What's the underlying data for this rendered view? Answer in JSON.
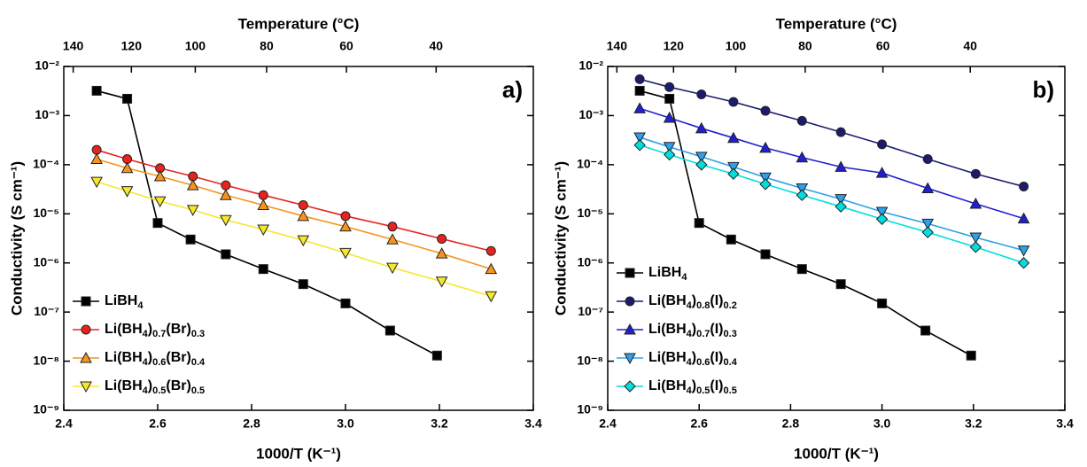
{
  "chart_data": [
    {
      "type": "line",
      "panel_label": "a)",
      "x_label": "1000/T (K⁻¹)",
      "y_label": "Conductivity (S cm⁻¹)",
      "x2_label": "Temperature (°C)",
      "xlim": [
        2.4,
        3.4
      ],
      "xticks": [
        2.4,
        2.6,
        2.8,
        {
          "value": 3,
          "label": "3.0"
        },
        3.2,
        3.4
      ],
      "x2ticks": [
        {
          "value": 2.42,
          "label": "140"
        },
        {
          "value": 2.544,
          "label": "120"
        },
        {
          "value": 2.68,
          "label": "100"
        },
        {
          "value": 2.832,
          "label": "80"
        },
        {
          "value": 3.002,
          "label": "60"
        },
        {
          "value": 3.193,
          "label": "40"
        }
      ],
      "ylim": [
        1e-09,
        0.01
      ],
      "yscale": "log",
      "yticks": [
        {
          "value": 1e-09,
          "label": "10⁻⁹"
        },
        {
          "value": 1e-08,
          "label": "10⁻⁸"
        },
        {
          "value": 1e-07,
          "label": "10⁻⁷"
        },
        {
          "value": 1e-06,
          "label": "10⁻⁶"
        },
        {
          "value": 1e-05,
          "label": "10⁻⁵"
        },
        {
          "value": 0.0001,
          "label": "10⁻⁴"
        },
        {
          "value": 0.001,
          "label": "10⁻³"
        },
        {
          "value": 0.01,
          "label": "10⁻²"
        }
      ],
      "legend": "lower left",
      "series": [
        {
          "name": "LiBH4",
          "color": "#000000",
          "marker": "square",
          "x": [
            2.47,
            2.535,
            2.6,
            2.67,
            2.745,
            2.825,
            2.91,
            3.0,
            3.095,
            3.195
          ],
          "values": [
            0.0032,
            0.0022,
            6.5e-06,
            3e-06,
            1.5e-06,
            7.5e-07,
            3.7e-07,
            1.5e-07,
            4.2e-08,
            1.3e-08
          ]
        },
        {
          "name": "Li(BH4)0.7(Br)0.3",
          "color": "#e8231f",
          "marker": "circle",
          "x": [
            2.47,
            2.535,
            2.605,
            2.675,
            2.745,
            2.825,
            2.91,
            3.0,
            3.1,
            3.205,
            3.31
          ],
          "values": [
            0.0002,
            0.00013,
            8.5e-05,
            5.8e-05,
            3.8e-05,
            2.4e-05,
            1.5e-05,
            9e-06,
            5.5e-06,
            3.1e-06,
            1.75e-06
          ]
        },
        {
          "name": "Li(BH4)0.6(Br)0.4",
          "color": "#f7941d",
          "marker": "triangle-up",
          "x": [
            2.47,
            2.535,
            2.605,
            2.675,
            2.745,
            2.825,
            2.91,
            3.0,
            3.1,
            3.205,
            3.31
          ],
          "values": [
            0.00013,
            8.5e-05,
            5.8e-05,
            3.8e-05,
            2.4e-05,
            1.5e-05,
            9e-06,
            5.5e-06,
            3e-06,
            1.55e-06,
            7.5e-07
          ]
        },
        {
          "name": "Li(BH4)0.5(Br)0.5",
          "color": "#f5e82a",
          "marker": "triangle-down",
          "x": [
            2.47,
            2.535,
            2.605,
            2.675,
            2.745,
            2.825,
            2.91,
            3.0,
            3.1,
            3.205,
            3.31
          ],
          "values": [
            4.5e-05,
            2.9e-05,
            1.8e-05,
            1.2e-05,
            7.5e-06,
            4.8e-06,
            2.9e-06,
            1.6e-06,
            8e-07,
            4.2e-07,
            2.1e-07
          ]
        }
      ]
    },
    {
      "type": "line",
      "panel_label": "b)",
      "x_label": "1000/T (K⁻¹)",
      "y_label": "Conductivity (S cm⁻¹)",
      "x2_label": "Temperature (°C)",
      "xlim": [
        2.4,
        3.4
      ],
      "xticks": [
        2.4,
        2.6,
        2.8,
        {
          "value": 3,
          "label": "3.0"
        },
        3.2,
        3.4
      ],
      "x2ticks": [
        {
          "value": 2.42,
          "label": "140"
        },
        {
          "value": 2.544,
          "label": "120"
        },
        {
          "value": 2.68,
          "label": "100"
        },
        {
          "value": 2.832,
          "label": "80"
        },
        {
          "value": 3.002,
          "label": "60"
        },
        {
          "value": 3.193,
          "label": "40"
        }
      ],
      "ylim": [
        1e-09,
        0.01
      ],
      "yscale": "log",
      "yticks": [
        {
          "value": 1e-09,
          "label": "10⁻⁹"
        },
        {
          "value": 1e-08,
          "label": "10⁻⁸"
        },
        {
          "value": 1e-07,
          "label": "10⁻⁷"
        },
        {
          "value": 1e-06,
          "label": "10⁻⁶"
        },
        {
          "value": 1e-05,
          "label": "10⁻⁵"
        },
        {
          "value": 0.0001,
          "label": "10⁻⁴"
        },
        {
          "value": 0.001,
          "label": "10⁻³"
        },
        {
          "value": 0.01,
          "label": "10⁻²"
        }
      ],
      "legend": "lower left",
      "series": [
        {
          "name": "LiBH4",
          "color": "#000000",
          "marker": "square",
          "x": [
            2.47,
            2.535,
            2.6,
            2.67,
            2.745,
            2.825,
            2.91,
            3.0,
            3.095,
            3.195
          ],
          "values": [
            0.0032,
            0.0022,
            6.5e-06,
            3e-06,
            1.5e-06,
            7.5e-07,
            3.7e-07,
            1.5e-07,
            4.2e-08,
            1.3e-08
          ]
        },
        {
          "name": "Li(BH4)0.8(I)0.2",
          "color": "#1c1c6e",
          "marker": "circle",
          "x": [
            2.47,
            2.535,
            2.605,
            2.675,
            2.745,
            2.825,
            2.91,
            3.0,
            3.1,
            3.205,
            3.31
          ],
          "values": [
            0.0055,
            0.0038,
            0.0027,
            0.0019,
            0.00125,
            0.00078,
            0.00046,
            0.00026,
            0.00013,
            6.5e-05,
            3.6e-05
          ]
        },
        {
          "name": "Li(BH4)0.7(I)0.3",
          "color": "#2020d0",
          "marker": "triangle-up",
          "x": [
            2.47,
            2.535,
            2.605,
            2.675,
            2.745,
            2.825,
            2.91,
            3.0,
            3.1,
            3.205,
            3.31
          ],
          "values": [
            0.0014,
            0.0009,
            0.00055,
            0.00035,
            0.00022,
            0.00014,
            9e-05,
            6.8e-05,
            3.3e-05,
            1.6e-05,
            8e-06
          ]
        },
        {
          "name": "Li(BH4)0.6(I)0.4",
          "color": "#2ea0e8",
          "marker": "triangle-down",
          "x": [
            2.47,
            2.535,
            2.605,
            2.675,
            2.745,
            2.825,
            2.91,
            3.0,
            3.1,
            3.205,
            3.31
          ],
          "values": [
            0.00036,
            0.00023,
            0.000145,
            9e-05,
            5.5e-05,
            3.3e-05,
            2e-05,
            1.1e-05,
            6.3e-06,
            3.3e-06,
            1.8e-06
          ]
        },
        {
          "name": "Li(BH4)0.5(I)0.5",
          "color": "#00dede",
          "marker": "diamond",
          "x": [
            2.47,
            2.535,
            2.605,
            2.675,
            2.745,
            2.825,
            2.91,
            3.0,
            3.1,
            3.205,
            3.31
          ],
          "values": [
            0.00025,
            0.00016,
            0.0001,
            6.5e-05,
            4e-05,
            2.4e-05,
            1.4e-05,
            7.8e-06,
            4.2e-06,
            2.1e-06,
            1e-06
          ]
        }
      ]
    }
  ]
}
